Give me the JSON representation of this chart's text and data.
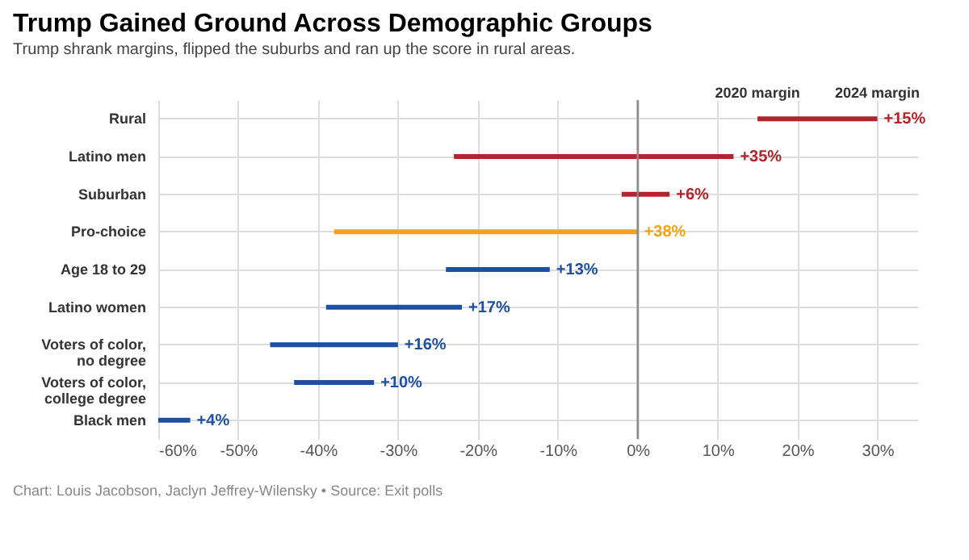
{
  "chart_data": {
    "type": "bar",
    "orientation": "horizontal",
    "title": "Trump Gained Ground Across Demographic Groups",
    "subtitle": "Trump shrank margins, flipped the suburbs and ran up the score in rural areas.",
    "categories": [
      "Rural",
      "Latino men",
      "Suburban",
      "Pro-choice",
      "Age 18 to 29",
      "Latino women",
      "Voters of color, no degree",
      "Voters of color, college degree",
      "Black men"
    ],
    "base": [
      15,
      -23,
      -2,
      -38,
      -24,
      -39,
      -46,
      -43,
      -60
    ],
    "values": [
      15,
      35,
      6,
      38,
      13,
      17,
      16,
      10,
      4
    ],
    "value_labels": [
      "+15%",
      "+35%",
      "+6%",
      "+38%",
      "+13%",
      "+17%",
      "+16%",
      "+10%",
      "+4%"
    ],
    "colors": [
      "#b3232b",
      "#b3232b",
      "#b3232b",
      "#f0a417",
      "#1e4fa0",
      "#1e4fa0",
      "#1e4fa0",
      "#1e4fa0",
      "#1e4fa0"
    ],
    "xlim": [
      -60,
      35
    ],
    "xticks": [
      {
        "value": -60,
        "label": "-60%"
      },
      {
        "value": -50,
        "label": "-50%"
      },
      {
        "value": -40,
        "label": "-40%"
      },
      {
        "value": -30,
        "label": "-30%"
      },
      {
        "value": -20,
        "label": "-20%"
      },
      {
        "value": -10,
        "label": "-10%"
      },
      {
        "value": 0,
        "label": "0%"
      },
      {
        "value": 10,
        "label": "10%"
      },
      {
        "value": 20,
        "label": "20%"
      },
      {
        "value": 30,
        "label": "30%"
      }
    ],
    "grid": true,
    "ref_lines": [
      {
        "axis": "x",
        "value": 0,
        "label": null,
        "color": "#888888"
      }
    ],
    "annotations": [
      {
        "text": "2020 margin",
        "x": 15,
        "y": "Rural"
      },
      {
        "text": "2024 margin",
        "x": 30,
        "y": "Rural"
      },
      "Chart: Louis Jacobson, Jaclyn Jeffrey-Wilensky • Source: Exit polls"
    ]
  }
}
